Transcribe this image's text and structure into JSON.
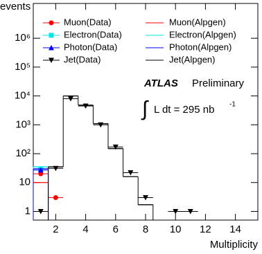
{
  "chart_data": {
    "type": "histogram",
    "x_label": "Multiplicity",
    "y_label": "events",
    "x": [
      1,
      2,
      3,
      4,
      5,
      6,
      7,
      8,
      9,
      10,
      11
    ],
    "series": [
      {
        "name": "Muon(Data)",
        "color": "#ff0000",
        "style": "points",
        "marker": "circle",
        "values": [
          20,
          3,
          null,
          null,
          null,
          null,
          null,
          null,
          null,
          null,
          null
        ]
      },
      {
        "name": "Muon(Alpgen)",
        "color": "#ff0000",
        "style": "step",
        "values": [
          10,
          null,
          null,
          null,
          null,
          null,
          null,
          null,
          null,
          null,
          null
        ]
      },
      {
        "name": "Electron(Data)",
        "color": "#00e5e5",
        "style": "points",
        "marker": "square",
        "values": [
          30,
          null,
          null,
          null,
          null,
          null,
          null,
          null,
          null,
          null,
          null
        ]
      },
      {
        "name": "Electron(Alpgen)",
        "color": "#00e5e5",
        "style": "step",
        "values": [
          35,
          null,
          null,
          null,
          null,
          null,
          null,
          null,
          null,
          null,
          null
        ]
      },
      {
        "name": "Photon(Data)",
        "color": "#0000ff",
        "style": "points",
        "marker": "triangle-up",
        "values": [
          27,
          null,
          null,
          null,
          null,
          null,
          null,
          null,
          null,
          null,
          null
        ]
      },
      {
        "name": "Photon(Alpgen)",
        "color": "#0000ff",
        "style": "step",
        "values": [
          30,
          null,
          null,
          null,
          null,
          null,
          null,
          null,
          null,
          null,
          null
        ]
      },
      {
        "name": "Jet(Data)",
        "color": "#000000",
        "style": "points",
        "marker": "triangle-down",
        "values": [
          1,
          31,
          8000,
          4500,
          1000,
          170,
          22,
          3,
          null,
          1,
          1
        ]
      },
      {
        "name": "Jet(Alpgen)",
        "color": "#000000",
        "style": "step",
        "values": [
          null,
          35,
          10000,
          4800,
          1100,
          150,
          16,
          1.7,
          null,
          null,
          null
        ]
      }
    ],
    "xlim": [
      0.5,
      15.5
    ],
    "xticks": [
      2,
      4,
      6,
      8,
      10,
      12,
      14
    ],
    "ylim": [
      0.5,
      16000000
    ],
    "log_y": true,
    "yticks": [
      1,
      10,
      {
        "value": 100,
        "label": "10²"
      },
      {
        "value": 1000,
        "label": "10³"
      },
      {
        "value": 10000,
        "label": "10⁴"
      },
      {
        "value": 100000,
        "label": "10⁵"
      },
      {
        "value": 1000000,
        "label": "10⁶"
      }
    ],
    "annotations": [
      "ATLAS",
      "Preliminary",
      "∫",
      "L dt = 295 nb",
      "-1"
    ]
  }
}
